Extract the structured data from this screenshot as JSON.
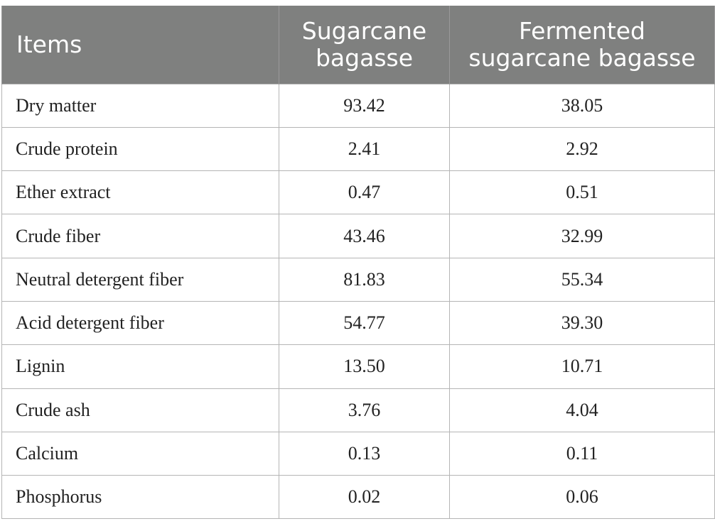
{
  "table": {
    "headers": [
      "Items",
      "Sugarcane bagasse",
      "Fermented sugarcane bagasse"
    ],
    "header_lines": [
      [
        "Items"
      ],
      [
        "Sugarcane",
        "bagasse"
      ],
      [
        "Fermented",
        "sugarcane bagasse"
      ]
    ],
    "header_color": "#7f807f",
    "rows": [
      {
        "item": "Dry matter",
        "sugarcane_bagasse": "93.42",
        "fermented_sugarcane_bagasse": "38.05"
      },
      {
        "item": "Crude protein",
        "sugarcane_bagasse": "2.41",
        "fermented_sugarcane_bagasse": "2.92"
      },
      {
        "item": "Ether extract",
        "sugarcane_bagasse": "0.47",
        "fermented_sugarcane_bagasse": "0.51"
      },
      {
        "item": "Crude fiber",
        "sugarcane_bagasse": "43.46",
        "fermented_sugarcane_bagasse": "32.99"
      },
      {
        "item": "Neutral detergent fiber",
        "sugarcane_bagasse": "81.83",
        "fermented_sugarcane_bagasse": "55.34"
      },
      {
        "item": "Acid detergent fiber",
        "sugarcane_bagasse": "54.77",
        "fermented_sugarcane_bagasse": "39.30"
      },
      {
        "item": "Lignin",
        "sugarcane_bagasse": "13.50",
        "fermented_sugarcane_bagasse": "10.71"
      },
      {
        "item": "Crude ash",
        "sugarcane_bagasse": "3.76",
        "fermented_sugarcane_bagasse": "4.04"
      },
      {
        "item": "Calcium",
        "sugarcane_bagasse": "0.13",
        "fermented_sugarcane_bagasse": "0.11"
      },
      {
        "item": "Phosphorus",
        "sugarcane_bagasse": "0.02",
        "fermented_sugarcane_bagasse": "0.06"
      }
    ]
  }
}
